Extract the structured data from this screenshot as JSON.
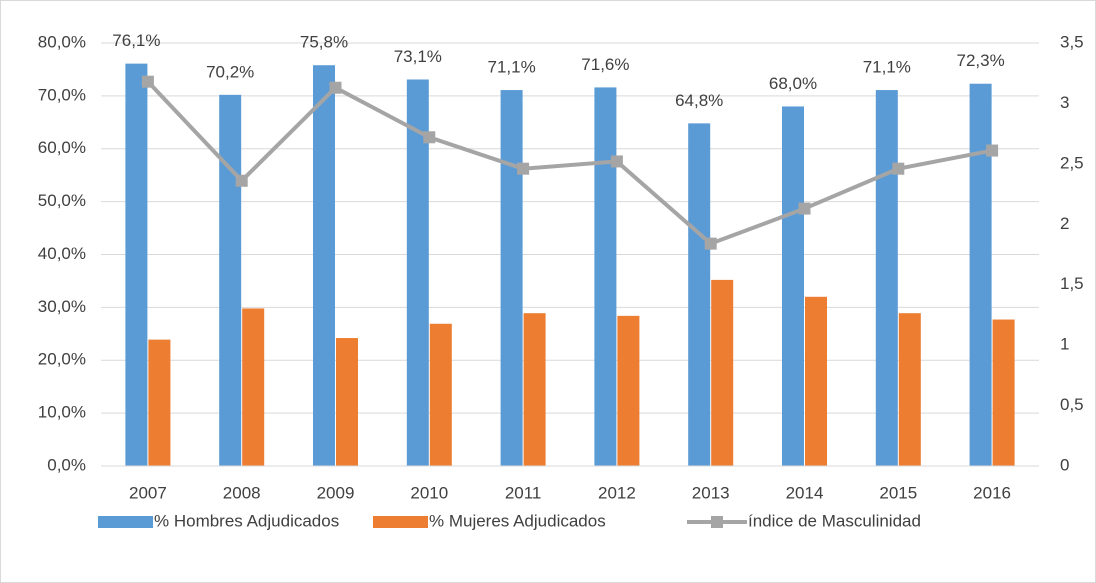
{
  "chart_data": {
    "type": "bar",
    "categories": [
      "2007",
      "2008",
      "2009",
      "2010",
      "2011",
      "2012",
      "2013",
      "2014",
      "2015",
      "2016"
    ],
    "series": [
      {
        "name": "% Hombres Adjudicados",
        "color": "#5b9bd5",
        "type": "bar",
        "values": [
          76.1,
          70.2,
          75.8,
          73.1,
          71.1,
          71.6,
          64.8,
          68.0,
          71.1,
          72.3
        ],
        "value_labels": [
          "76,1%",
          "70,2%",
          "75,8%",
          "73,1%",
          "71,1%",
          "71,6%",
          "64,8%",
          "68,0%",
          "71,1%",
          "72,3%"
        ]
      },
      {
        "name": "% Mujeres Adjudicados",
        "color": "#ed7d31",
        "type": "bar",
        "values": [
          23.9,
          29.8,
          24.2,
          26.9,
          28.9,
          28.4,
          35.2,
          32.0,
          28.9,
          27.7
        ]
      },
      {
        "name": "índice de Masculinidad",
        "color": "#a5a5a5",
        "type": "line",
        "axis": "y2",
        "values": [
          3.18,
          2.36,
          3.13,
          2.72,
          2.46,
          2.52,
          1.84,
          2.13,
          2.46,
          2.61
        ]
      }
    ],
    "ylim": [
      0,
      80
    ],
    "yticks": [
      {
        "value": 0,
        "label": "0,0%"
      },
      {
        "value": 10,
        "label": "10,0%"
      },
      {
        "value": 20,
        "label": "20,0%"
      },
      {
        "value": 30,
        "label": "30,0%"
      },
      {
        "value": 40,
        "label": "40,0%"
      },
      {
        "value": 50,
        "label": "50,0%"
      },
      {
        "value": 60,
        "label": "60,0%"
      },
      {
        "value": 70,
        "label": "70,0%"
      },
      {
        "value": 80,
        "label": "80,0%"
      }
    ],
    "y2lim": [
      0,
      3.5
    ],
    "y2ticks": [
      0,
      {
        "value": 0.5,
        "label": "0,5"
      },
      1,
      {
        "value": 1.5,
        "label": "1,5"
      },
      2,
      {
        "value": 2.5,
        "label": "2,5"
      },
      3,
      {
        "value": 3.5,
        "label": "3,5"
      }
    ],
    "grid": true,
    "legend": "bottom"
  }
}
